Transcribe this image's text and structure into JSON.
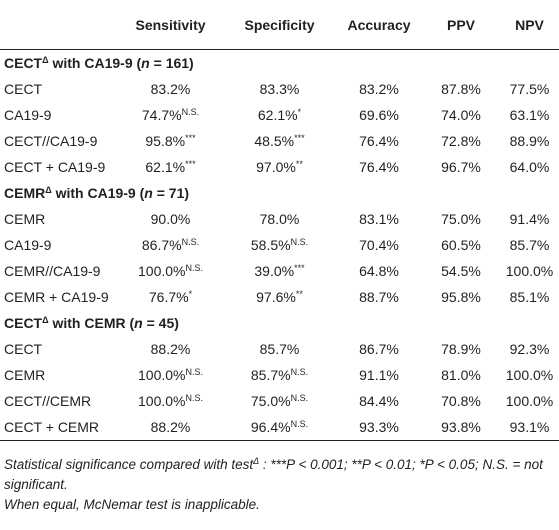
{
  "table": {
    "header": [
      "Sensitivity",
      "Specificity",
      "Accuracy",
      "PPV",
      "NPV"
    ],
    "sections": [
      {
        "title": [
          {
            "text": "CECT"
          },
          {
            "text": "Δ",
            "style": "sup"
          },
          {
            "text": " with CA19-9 ("
          },
          {
            "text": "n",
            "style": "i"
          },
          {
            "text": " = 161)"
          }
        ],
        "rows": [
          [
            "CECT",
            "83.2%",
            "83.3%",
            "83.2%",
            "87.8%",
            "77.5%"
          ],
          [
            "CA19-9",
            {
              "text": "74.7%",
              "sup": "N.S."
            },
            {
              "text": "62.1%",
              "sup": "*"
            },
            "69.6%",
            "74.0%",
            "63.1%"
          ],
          [
            "CECT//CA19-9",
            {
              "text": "95.8%",
              "sup": "***"
            },
            {
              "text": "48.5%",
              "sup": "***"
            },
            "76.4%",
            "72.8%",
            "88.9%"
          ],
          [
            "CECT + CA19-9",
            {
              "text": "62.1%",
              "sup": "***"
            },
            {
              "text": "97.0%",
              "sup": "**"
            },
            "76.4%",
            "96.7%",
            "64.0%"
          ]
        ]
      },
      {
        "title": [
          {
            "text": "CEMR"
          },
          {
            "text": "Δ",
            "style": "sup"
          },
          {
            "text": " with CA19-9 ("
          },
          {
            "text": "n",
            "style": "i"
          },
          {
            "text": " = 71)"
          }
        ],
        "rows": [
          [
            "CEMR",
            "90.0%",
            "78.0%",
            "83.1%",
            "75.0%",
            "91.4%"
          ],
          [
            "CA19-9",
            {
              "text": "86.7%",
              "sup": "N.S."
            },
            {
              "text": "58.5%",
              "sup": "N.S."
            },
            "70.4%",
            "60.5%",
            "85.7%"
          ],
          [
            "CEMR//CA19-9",
            {
              "text": "100.0%",
              "sup": "N.S."
            },
            {
              "text": "39.0%",
              "sup": "***"
            },
            "64.8%",
            "54.5%",
            "100.0%"
          ],
          [
            "CEMR + CA19-9",
            {
              "text": "76.7%",
              "sup": "*"
            },
            {
              "text": "97.6%",
              "sup": "**"
            },
            "88.7%",
            "95.8%",
            "85.1%"
          ]
        ]
      },
      {
        "title": [
          {
            "text": "CECT"
          },
          {
            "text": "Δ",
            "style": "sup"
          },
          {
            "text": " with CEMR ("
          },
          {
            "text": "n",
            "style": "i"
          },
          {
            "text": " = 45)"
          }
        ],
        "rows": [
          [
            "CECT",
            "88.2%",
            "85.7%",
            "86.7%",
            "78.9%",
            "92.3%"
          ],
          [
            "CEMR",
            {
              "text": "100.0%",
              "sup": "N.S."
            },
            {
              "text": "85.7%",
              "sup": "N.S."
            },
            "91.1%",
            "81.0%",
            "100.0%"
          ],
          [
            "CECT//CEMR",
            {
              "text": "100.0%",
              "sup": "N.S."
            },
            {
              "text": "75.0%",
              "sup": "N.S."
            },
            "84.4%",
            "70.8%",
            "100.0%"
          ],
          [
            "CECT + CEMR",
            "88.2%",
            {
              "text": "96.4%",
              "sup": "N.S."
            },
            "93.3%",
            "93.8%",
            "93.1%"
          ]
        ]
      }
    ],
    "footnotes": [
      [
        {
          "text": "Statistical significance compared with test"
        },
        {
          "text": "Δ",
          "style": "sup"
        },
        {
          "text": " : ***P < 0.001; **P < 0.01; *P < 0.05; N.S. = not significant."
        }
      ],
      [
        {
          "text": "When equal, McNemar test is inapplicable."
        }
      ]
    ]
  }
}
